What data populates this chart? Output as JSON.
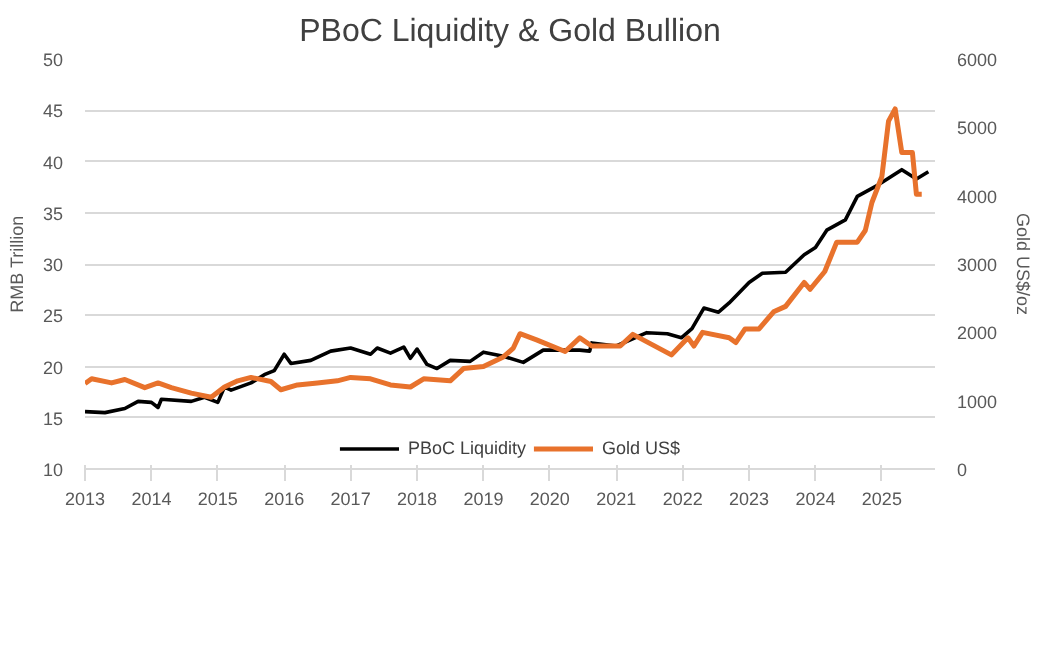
{
  "chart_data": {
    "type": "line",
    "title": "PBoC Liquidity & Gold Bullion",
    "ylabel": "RMB Trillion",
    "y2label": "Gold US$/oz",
    "xlim": [
      2013,
      2025.8
    ],
    "xticks": [
      2013,
      2014,
      2015,
      2016,
      2017,
      2018,
      2019,
      2020,
      2021,
      2022,
      2023,
      2024,
      2025
    ],
    "ylim": [
      10,
      50
    ],
    "yticks": [
      10,
      15,
      20,
      25,
      30,
      35,
      40,
      45,
      50
    ],
    "y2lim": [
      0,
      6000
    ],
    "y2ticks": [
      0,
      1000,
      2000,
      3000,
      4000,
      5000,
      6000
    ],
    "grid": "y",
    "legend": "bottom",
    "line_style": "solid",
    "marker": "none",
    "series": [
      {
        "name": "PBoC Liquidity",
        "color": "#000000",
        "x": [
          2013.0,
          2013.3,
          2013.6,
          2013.8,
          2014.0,
          2014.1,
          2014.15,
          2014.6,
          2014.8,
          2015.0,
          2015.1,
          2015.2,
          2015.5,
          2015.7,
          2015.85,
          2016.0,
          2016.1,
          2016.4,
          2016.7,
          2017.0,
          2017.3,
          2017.4,
          2017.6,
          2017.8,
          2017.9,
          2018.0,
          2018.15,
          2018.3,
          2018.5,
          2018.8,
          2019.0,
          2019.3,
          2019.6,
          2019.9,
          2020.45,
          2020.6,
          2020.63,
          2021.0,
          2021.46,
          2021.77,
          2021.98,
          2022.14,
          2022.32,
          2022.54,
          2022.7,
          2023.0,
          2023.2,
          2023.55,
          2023.83,
          2024.0,
          2024.17,
          2024.45,
          2024.63,
          2024.94,
          2025.3,
          2025.52,
          2025.7
        ],
        "values": [
          15.6,
          15.5,
          15.9,
          16.6,
          16.5,
          16.0,
          16.8,
          16.6,
          17.0,
          16.5,
          18.0,
          17.7,
          18.4,
          19.2,
          19.6,
          21.2,
          20.3,
          20.6,
          21.5,
          21.8,
          21.2,
          21.8,
          21.3,
          21.9,
          20.8,
          21.7,
          20.2,
          19.8,
          20.6,
          20.5,
          21.4,
          21.0,
          20.4,
          21.6,
          21.6,
          21.5,
          22.3,
          22.0,
          23.3,
          23.2,
          22.8,
          23.7,
          25.7,
          25.3,
          26.2,
          28.2,
          29.1,
          29.2,
          30.9,
          31.6,
          33.3,
          34.3,
          36.6,
          37.7,
          39.2,
          38.3,
          39.0
        ]
      },
      {
        "name": "Gold US$",
        "color": "#e8722c",
        "axis": "y2",
        "x": [
          2013.0,
          2013.1,
          2013.4,
          2013.6,
          2013.9,
          2014.1,
          2014.3,
          2014.6,
          2014.9,
          2015.1,
          2015.3,
          2015.5,
          2015.8,
          2015.95,
          2016.2,
          2016.5,
          2016.8,
          2017.0,
          2017.3,
          2017.6,
          2017.9,
          2018.1,
          2018.5,
          2018.7,
          2019.0,
          2019.3,
          2019.45,
          2019.55,
          2019.8,
          2020.23,
          2020.45,
          2020.63,
          2021.06,
          2021.25,
          2021.83,
          2022.08,
          2022.17,
          2022.3,
          2022.7,
          2022.8,
          2022.94,
          2023.15,
          2023.37,
          2023.55,
          2023.83,
          2023.92,
          2024.14,
          2024.32,
          2024.63,
          2024.75,
          2024.85,
          2025.0,
          2025.1,
          2025.2,
          2025.3,
          2025.46,
          2025.52,
          2025.6
        ],
        "values": [
          1250,
          1320,
          1260,
          1310,
          1190,
          1260,
          1190,
          1110,
          1050,
          1200,
          1290,
          1340,
          1280,
          1160,
          1230,
          1260,
          1290,
          1340,
          1320,
          1230,
          1200,
          1320,
          1290,
          1470,
          1500,
          1640,
          1770,
          1980,
          1890,
          1720,
          1920,
          1800,
          1800,
          1970,
          1670,
          1920,
          1800,
          2000,
          1920,
          1850,
          2050,
          2050,
          2300,
          2380,
          2730,
          2630,
          2890,
          3320,
          3320,
          3490,
          3900,
          4280,
          5090,
          5270,
          4630,
          4630,
          4020,
          4020
        ]
      }
    ]
  }
}
